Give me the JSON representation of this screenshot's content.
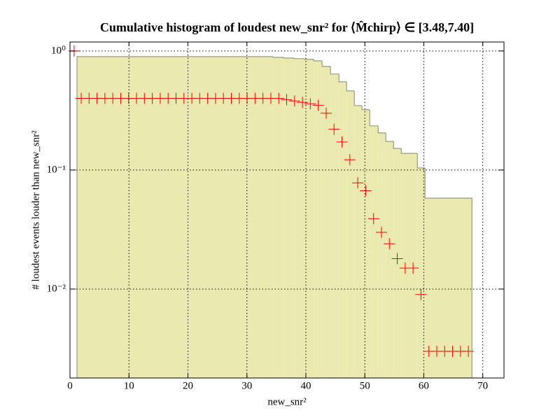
{
  "chart_data": {
    "type": "histogram",
    "title": "Cumulative histogram of loudest new_snr² for ⟨M̂chirp⟩ ∈ [3.48,7.40]",
    "x_label": "new_snr²",
    "y_label": "# loudest events louder than new_snr²",
    "yscale": "log",
    "grid": true,
    "color": "#eaeab0",
    "edge_color": "#9a9a80",
    "xlim": [
      0,
      73.6
    ],
    "ylim": [
      0.00179,
      1.19
    ],
    "xticks": [
      0,
      10,
      20,
      30,
      40,
      50,
      60,
      70
    ],
    "yticks": [
      {
        "value": 1,
        "label": "10⁰"
      },
      {
        "value": 0.1,
        "label": "10⁻¹"
      },
      {
        "value": 0.01,
        "label": "10⁻²"
      }
    ],
    "bins": [
      1.19,
      34.44,
      36.22,
      38.0,
      39.79,
      41.33,
      42.76,
      44.18,
      45.61,
      46.91,
      48.22,
      49.52,
      50.83,
      52.26,
      53.56,
      54.87,
      56.18,
      58.91,
      60.21,
      68.17
    ],
    "counts": [
      0.897,
      0.885,
      0.873,
      0.862,
      0.851,
      0.827,
      0.742,
      0.64,
      0.551,
      0.462,
      0.348,
      0.321,
      0.235,
      0.205,
      0.174,
      0.152,
      0.138,
      0.104,
      0.058
    ],
    "overlay": {
      "type": "scatter",
      "marker": "+",
      "color": "#ff0000",
      "x": [
        0.7,
        1.9,
        3.24,
        4.58,
        5.92,
        7.26,
        8.6,
        9.94,
        11.28,
        12.62,
        13.96,
        15.3,
        16.64,
        17.98,
        19.32,
        20.66,
        22.0,
        23.34,
        24.68,
        26.02,
        27.36,
        28.7,
        30.04,
        31.38,
        32.72,
        34.06,
        35.4,
        36.74,
        38.08,
        39.42,
        40.76,
        42.1,
        43.44,
        44.78,
        46.12,
        47.46,
        48.8,
        50.14,
        51.48,
        52.82,
        54.16,
        55.5,
        56.84,
        58.18,
        59.52,
        60.86,
        62.2,
        63.54,
        64.88,
        66.22,
        67.56
      ],
      "values": [
        1.0,
        0.4,
        0.4,
        0.4,
        0.4,
        0.4,
        0.4,
        0.4,
        0.4,
        0.4,
        0.4,
        0.4,
        0.4,
        0.4,
        0.4,
        0.4,
        0.4,
        0.4,
        0.4,
        0.4,
        0.4,
        0.4,
        0.4,
        0.4,
        0.4,
        0.4,
        0.4,
        0.39,
        0.38,
        0.37,
        0.36,
        0.35,
        0.3,
        0.22,
        0.172,
        0.122,
        0.078,
        0.067,
        0.039,
        0.03,
        0.024,
        0.018,
        0.015,
        0.015,
        0.009,
        0.003,
        0.003,
        0.003,
        0.003,
        0.003,
        0.003
      ]
    }
  }
}
